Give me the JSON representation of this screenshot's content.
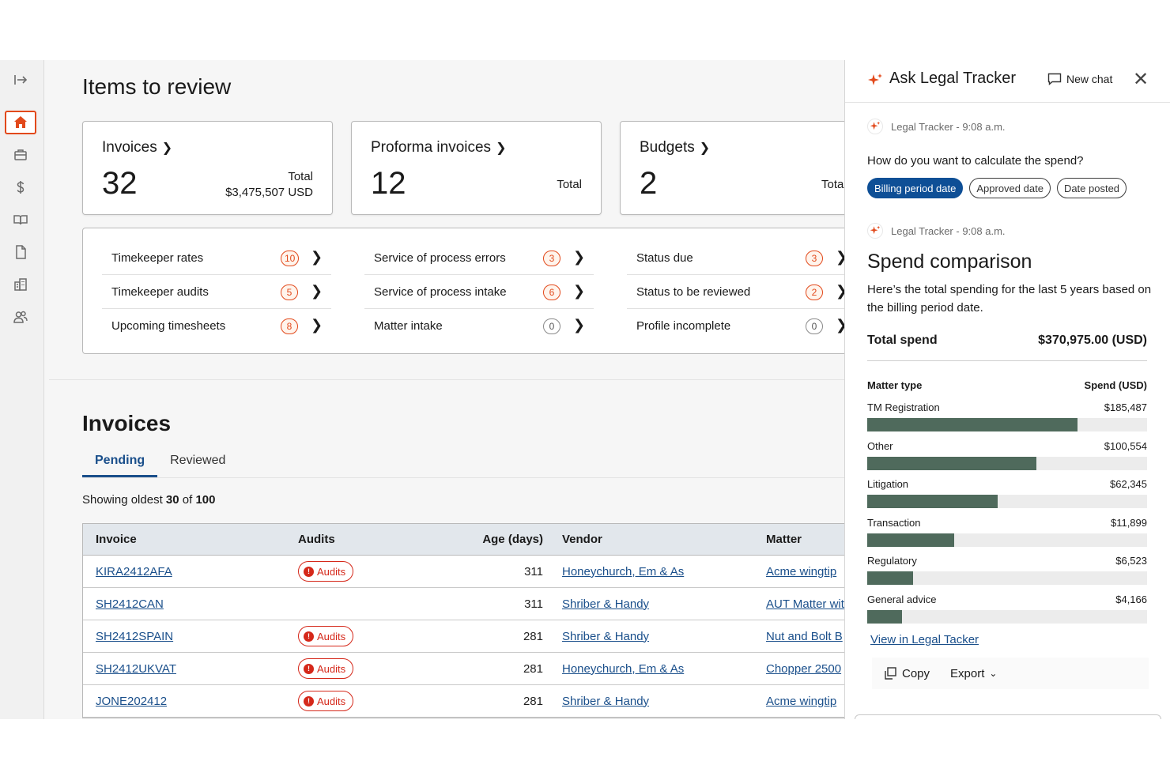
{
  "rail": {
    "items": [
      {
        "icon": "expand-icon"
      },
      {
        "icon": "home-icon",
        "active": true
      },
      {
        "icon": "briefcase-icon"
      },
      {
        "icon": "dollar-icon"
      },
      {
        "icon": "book-icon"
      },
      {
        "icon": "document-icon"
      },
      {
        "icon": "building-icon"
      },
      {
        "icon": "people-icon"
      }
    ]
  },
  "main": {
    "title": "Items to review",
    "cards": [
      {
        "title": "Invoices",
        "count": "32",
        "total_label": "Total",
        "total_value": "$3,475,507 USD"
      },
      {
        "title": "Proforma invoices",
        "count": "12",
        "total_label": "Total",
        "total_value": ""
      },
      {
        "title": "Budgets",
        "count": "2",
        "total_label": "Tota",
        "total_value": ""
      }
    ],
    "checks": [
      [
        {
          "label": "Timekeeper rates",
          "count": "10"
        },
        {
          "label": "Timekeeper audits",
          "count": "5"
        },
        {
          "label": "Upcoming timesheets",
          "count": "8"
        }
      ],
      [
        {
          "label": "Service of process errors",
          "count": "3"
        },
        {
          "label": "Service of process intake",
          "count": "6"
        },
        {
          "label": "Matter intake",
          "count": "0"
        }
      ],
      [
        {
          "label": "Status due",
          "count": "3"
        },
        {
          "label": "Status to be reviewed",
          "count": "2"
        },
        {
          "label": "Profile incomplete",
          "count": "0"
        }
      ]
    ],
    "invoices_title": "Invoices",
    "tabs": [
      "Pending",
      "Reviewed"
    ],
    "showing": {
      "prefix": "Showing oldest",
      "count": "30",
      "of": "of",
      "total": "100"
    },
    "table": {
      "headers": [
        "Invoice",
        "Audits",
        "Age (days)",
        "Vendor",
        "Matter"
      ],
      "rows": [
        {
          "invoice": "KIRA2412AFA",
          "audits": "Audits",
          "age": "311",
          "vendor": "Honeychurch, Em & As",
          "matter": "Acme wingtip"
        },
        {
          "invoice": "SH2412CAN",
          "audits": "",
          "age": "311",
          "vendor": "Shriber & Handy",
          "matter": "AUT Matter wit"
        },
        {
          "invoice": "SH2412SPAIN",
          "audits": "Audits",
          "age": "281",
          "vendor": "Shriber & Handy",
          "matter": "Nut and Bolt B"
        },
        {
          "invoice": "SH2412UKVAT",
          "audits": "Audits",
          "age": "281",
          "vendor": "Honeychurch, Em & As",
          "matter": "Chopper 2500"
        },
        {
          "invoice": "JONE202412",
          "audits": "Audits",
          "age": "281",
          "vendor": "Shriber & Handy",
          "matter": "Acme wingtip"
        }
      ]
    }
  },
  "panel": {
    "title": "Ask Legal Tracker",
    "new_chat": "New chat",
    "meta1": "Legal Tracker - 9:08 a.m.",
    "question": "How do you want to calculate the spend?",
    "chips": [
      "Billing period date",
      "Approved date",
      "Date posted"
    ],
    "meta2": "Legal Tracker - 9:08 a.m.",
    "spend_title": "Spend comparison",
    "spend_desc": "Here’s the total spending for the last 5 years based on the billing period date.",
    "total_label": "Total spend",
    "total_value": "$370,975.00 (USD)",
    "col_type": "Matter type",
    "col_spend": "Spend (USD)",
    "view_link": "View in Legal Tacker",
    "copy": "Copy",
    "export": "Export",
    "accent": "#e2491b",
    "bar_color": "#4f6a5c"
  },
  "chart_data": {
    "type": "bar",
    "categories": [
      "TM Registration",
      "Other",
      "Litigation",
      "Transaction",
      "Regulatory",
      "General advice"
    ],
    "values": [
      185487,
      100554,
      62345,
      11899,
      6523,
      4166
    ],
    "value_labels": [
      "$185,487",
      "$100,554",
      "$62,345",
      "$11,899",
      "$6,523",
      "$4,166"
    ],
    "xlabel": "Spend (USD)",
    "ylabel": "Matter type",
    "fill_fractions": [
      0.75,
      0.605,
      0.465,
      0.31,
      0.165,
      0.125
    ]
  }
}
